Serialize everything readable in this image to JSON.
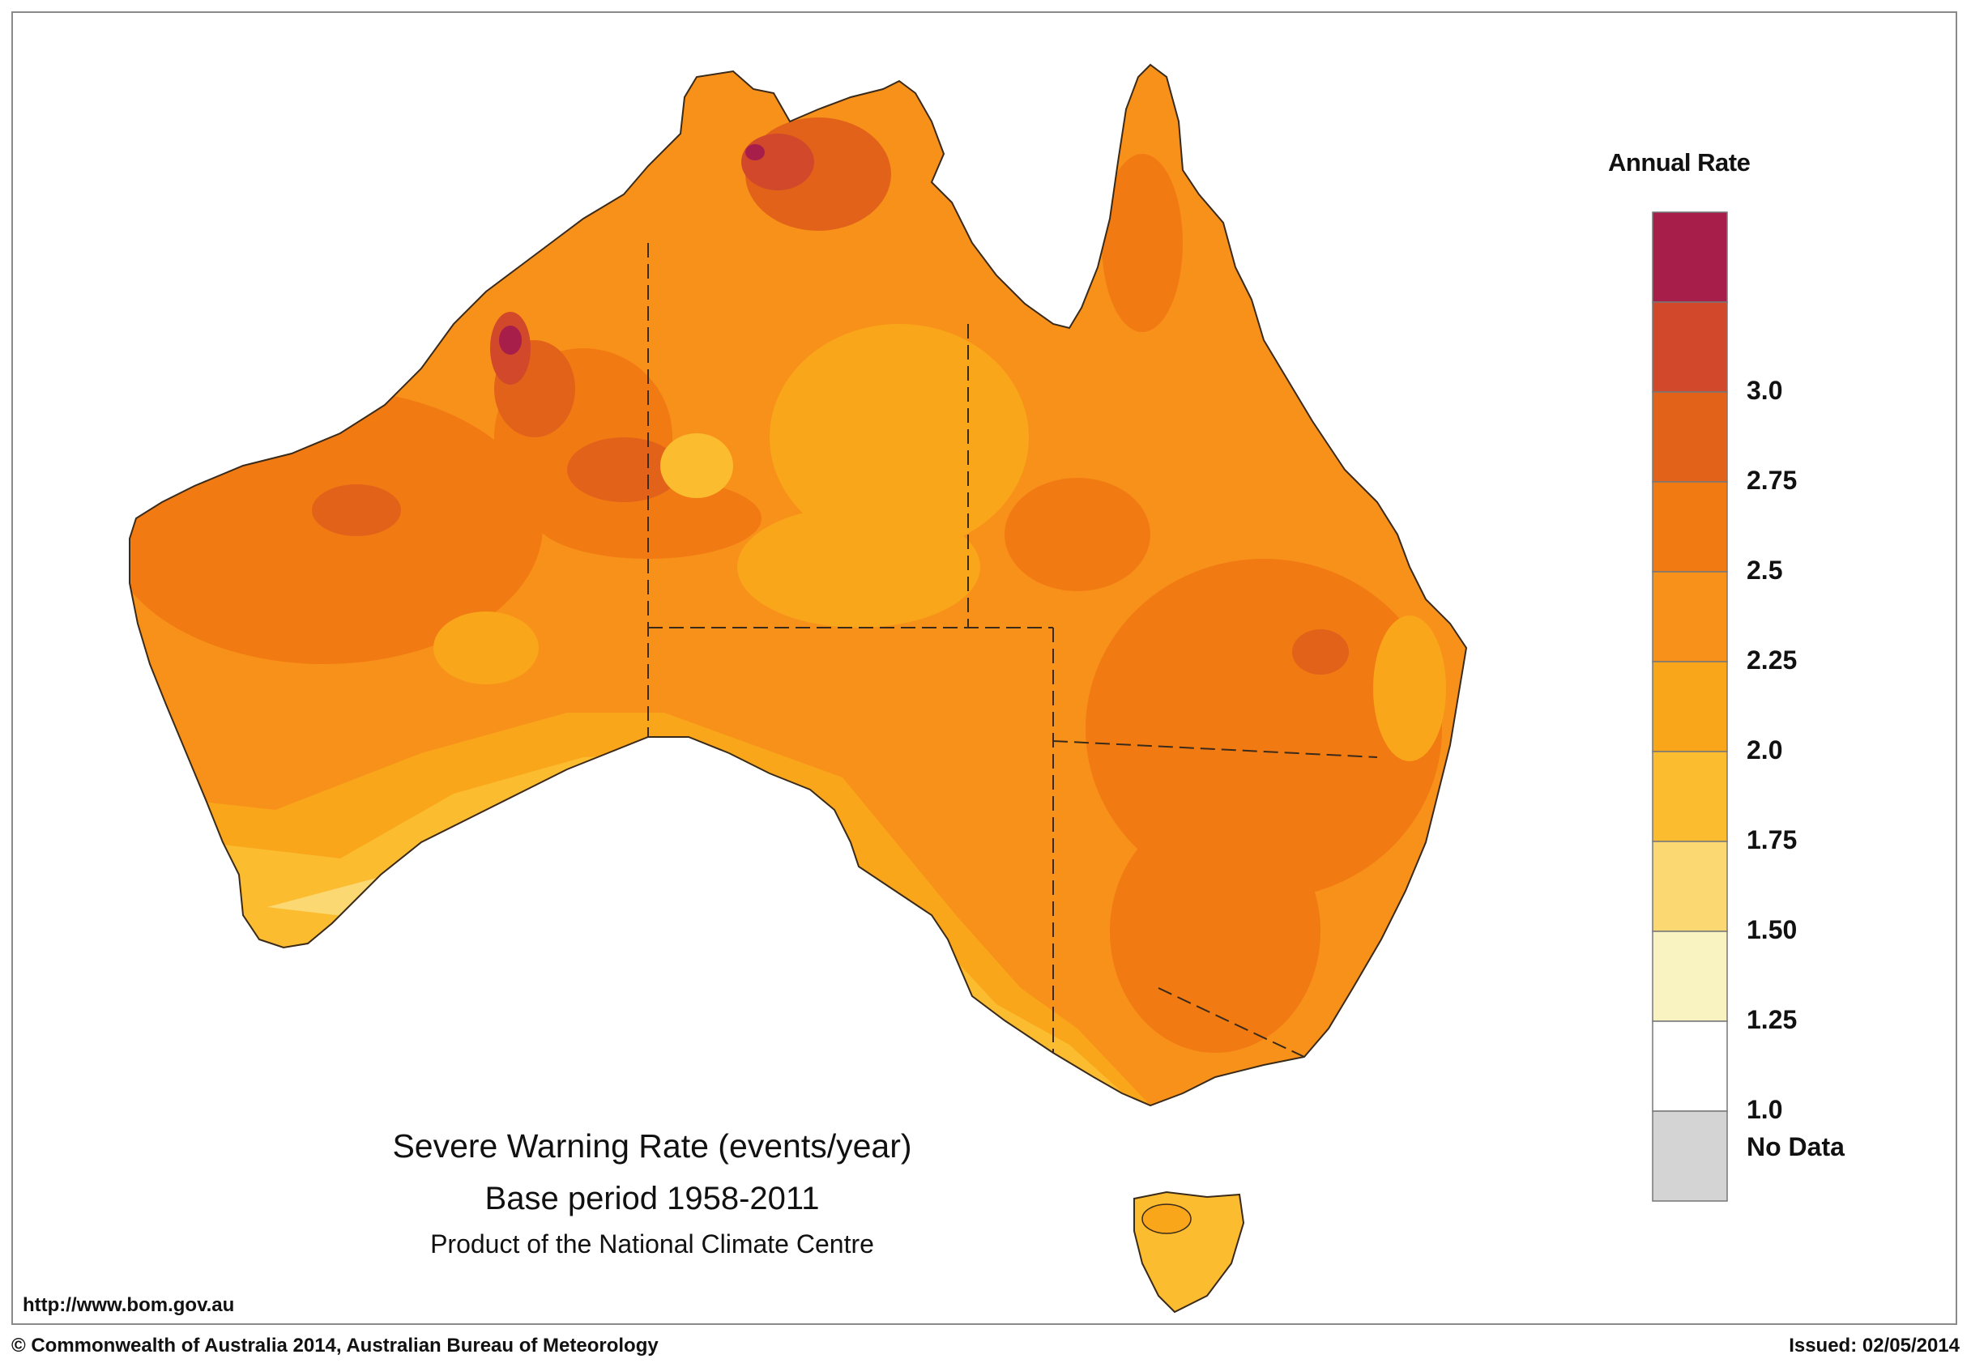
{
  "legend": {
    "title": "Annual Rate",
    "bins": [
      {
        "label": "",
        "color": "#a81e4a"
      },
      {
        "label": "3.0",
        "color": "#d1482b"
      },
      {
        "label": "2.75",
        "color": "#e2621a"
      },
      {
        "label": "2.5",
        "color": "#f27a13"
      },
      {
        "label": "2.25",
        "color": "#f7911a"
      },
      {
        "label": "2.0",
        "color": "#f9a61a"
      },
      {
        "label": "1.75",
        "color": "#fbbc30"
      },
      {
        "label": "1.50",
        "color": "#fcd873"
      },
      {
        "label": "1.25",
        "color": "#f8f3c0"
      },
      {
        "label": "1.0",
        "color": "#ffffff"
      }
    ],
    "no_data": {
      "label": "No Data",
      "color": "#d4d4d4"
    }
  },
  "caption": {
    "line1": "Severe Warning Rate (events/year)",
    "line2": "Base period 1958-2011",
    "line3": "Product of the National Climate Centre"
  },
  "footer": {
    "url": "http://www.bom.gov.au",
    "copyright": "© Commonwealth of Australia 2014, Australian Bureau of Meteorology",
    "issued": "Issued: 02/05/2014"
  }
}
